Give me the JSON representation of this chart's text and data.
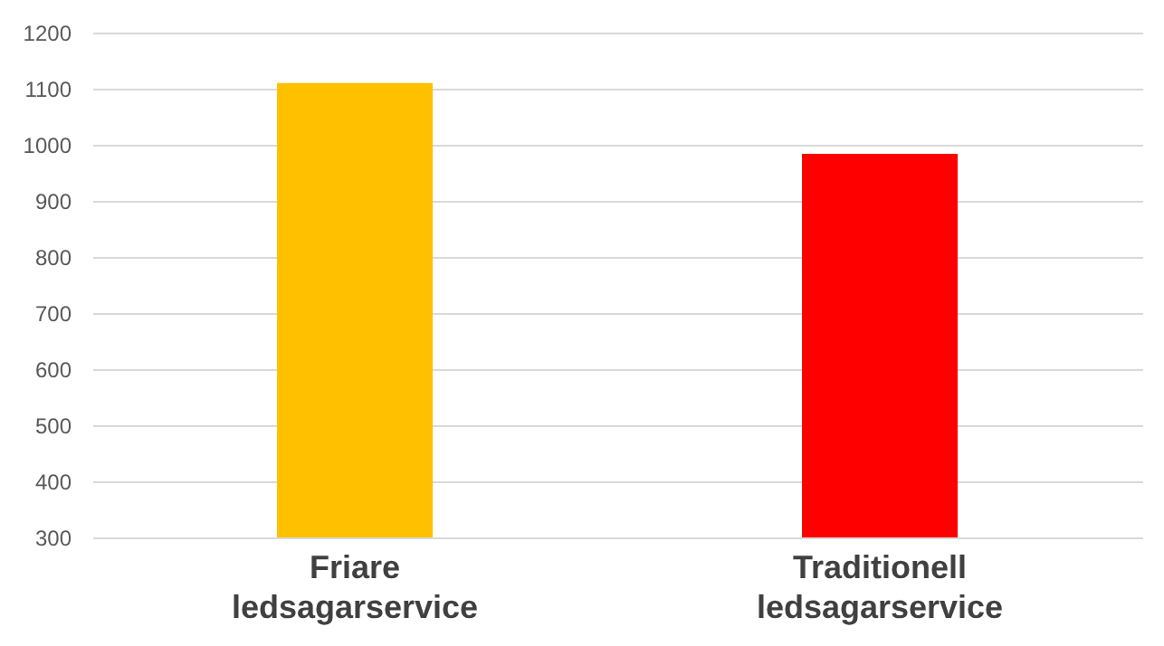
{
  "chart_data": {
    "type": "bar",
    "categories": [
      "Friare ledsagarservice",
      "Traditionell ledsagarservice"
    ],
    "values": [
      1110,
      984
    ],
    "colors": [
      "#ffc000",
      "#ff0000"
    ],
    "ylim": [
      300,
      1200
    ],
    "yticks": [
      300,
      400,
      500,
      600,
      700,
      800,
      900,
      1000,
      1100,
      1200
    ],
    "grid": "y"
  }
}
